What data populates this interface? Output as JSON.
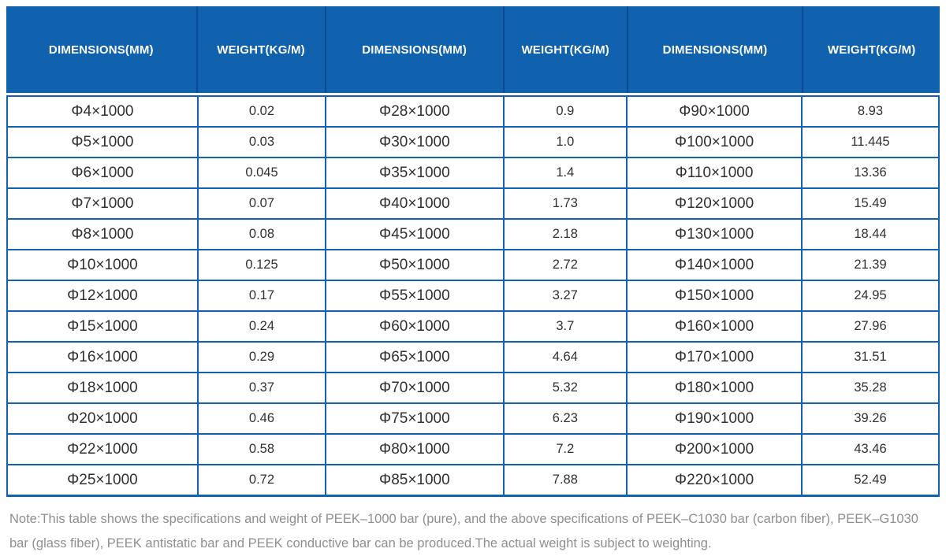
{
  "colors": {
    "header_bg": "#1061ae",
    "header_divider": "#0a4a94",
    "grid": "#1162b2",
    "cell_text": "#303030",
    "header_text": "#ffffff",
    "note_text": "#8f8f8f"
  },
  "table": {
    "headers": [
      "DIMENSIONS(MM)",
      "WEIGHT(KG/M)",
      "DIMENSIONS(MM)",
      "WEIGHT(KG/M)",
      "DIMENSIONS(MM)",
      "WEIGHT(KG/M)"
    ],
    "rows": [
      [
        "Φ4×1000",
        "0.02",
        "Φ28×1000",
        "0.9",
        "Φ90×1000",
        "8.93"
      ],
      [
        "Φ5×1000",
        "0.03",
        "Φ30×1000",
        "1.0",
        "Φ100×1000",
        "11.445"
      ],
      [
        "Φ6×1000",
        "0.045",
        "Φ35×1000",
        "1.4",
        "Φ110×1000",
        "13.36"
      ],
      [
        "Φ7×1000",
        "0.07",
        "Φ40×1000",
        "1.73",
        "Φ120×1000",
        "15.49"
      ],
      [
        "Φ8×1000",
        "0.08",
        "Φ45×1000",
        "2.18",
        "Φ130×1000",
        "18.44"
      ],
      [
        "Φ10×1000",
        "0.125",
        "Φ50×1000",
        "2.72",
        "Φ140×1000",
        "21.39"
      ],
      [
        "Φ12×1000",
        "0.17",
        "Φ55×1000",
        "3.27",
        "Φ150×1000",
        "24.95"
      ],
      [
        "Φ15×1000",
        "0.24",
        "Φ60×1000",
        "3.7",
        "Φ160×1000",
        "27.96"
      ],
      [
        "Φ16×1000",
        "0.29",
        "Φ65×1000",
        "4.64",
        "Φ170×1000",
        "31.51"
      ],
      [
        "Φ18×1000",
        "0.37",
        "Φ70×1000",
        "5.32",
        "Φ180×1000",
        "35.28"
      ],
      [
        "Φ20×1000",
        "0.46",
        "Φ75×1000",
        "6.23",
        "Φ190×1000",
        "39.26"
      ],
      [
        "Φ22×1000",
        "0.58",
        "Φ80×1000",
        "7.2",
        "Φ200×1000",
        "43.46"
      ],
      [
        "Φ25×1000",
        "0.72",
        "Φ85×1000",
        "7.88",
        "Φ220×1000",
        "52.49"
      ]
    ]
  },
  "note": "Note:This table shows the specifications and weight of PEEK–1000 bar (pure), and the above specifications of PEEK–C1030 bar (carbon fiber), PEEK–G1030 bar (glass fiber), PEEK antistatic bar and PEEK conductive bar can be produced.The actual weight is subject to weighting."
}
